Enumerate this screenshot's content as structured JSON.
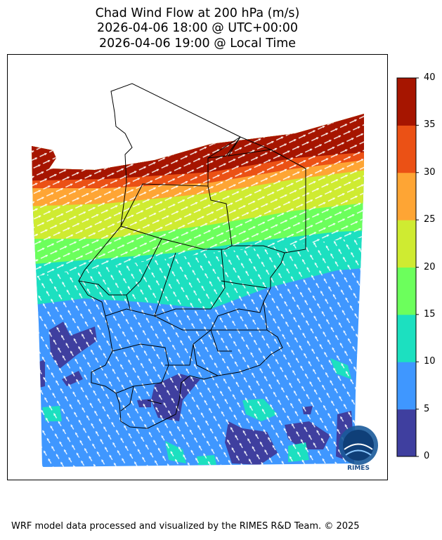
{
  "title": {
    "line1": "Chad Wind Flow at 200 hPa (m/s)",
    "line2": "2026-04-06 18:00 @ UTC+00:00",
    "line3": "2026-04-06 19:00 @ Local Time"
  },
  "colorbar": {
    "ticks": [
      "0",
      "5",
      "10",
      "15",
      "20",
      "25",
      "30",
      "35",
      "40"
    ],
    "colors": [
      "#3f3f9f",
      "#3f97ff",
      "#1ce0c0",
      "#6cff5c",
      "#cfeb31",
      "#fea534",
      "#eb5115",
      "#a61500"
    ]
  },
  "logo": {
    "text": "RIMES",
    "ring_text": "Hazard Early Warning System"
  },
  "footer": "WRF model data processed and visualized by the RIMES R&D Team. © 2025"
}
